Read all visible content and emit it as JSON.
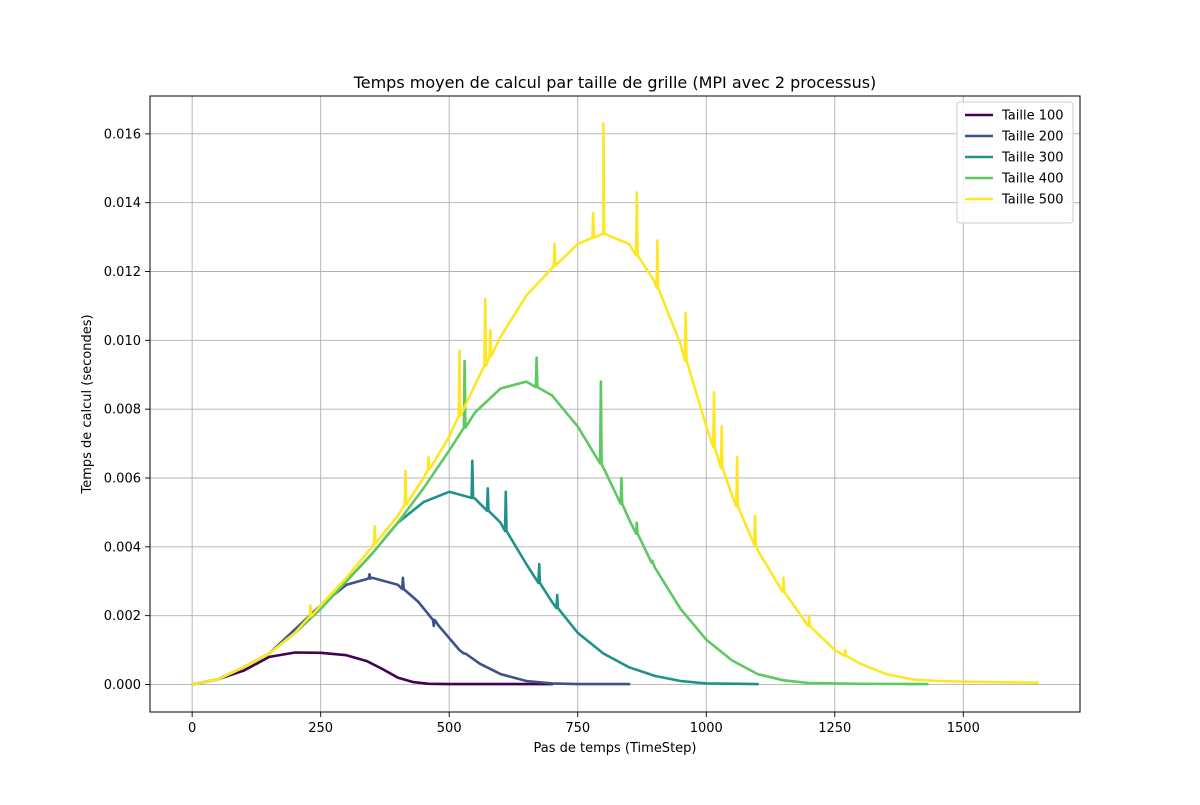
{
  "chart_data": {
    "type": "line",
    "title": "Temps moyen de calcul par taille de grille (MPI avec 2 processus)",
    "xlabel": "Pas de temps (TimeStep)",
    "ylabel": "Temps de calcul (secondes)",
    "xlim": [
      -82,
      1727
    ],
    "ylim": [
      -0.0008,
      0.0171
    ],
    "xticks": [
      0,
      250,
      500,
      750,
      1000,
      1250,
      1500
    ],
    "xtick_labels": [
      "0",
      "250",
      "500",
      "750",
      "1000",
      "1250",
      "1500"
    ],
    "yticks": [
      0.0,
      0.002,
      0.004,
      0.006,
      0.008,
      0.01,
      0.012,
      0.014,
      0.016
    ],
    "ytick_labels": [
      "0.000",
      "0.002",
      "0.004",
      "0.006",
      "0.008",
      "0.010",
      "0.012",
      "0.014",
      "0.016"
    ],
    "grid": true,
    "legend_position": "top-right",
    "series": [
      {
        "name": "Taille 100",
        "color": "#440154",
        "x": [
          0,
          50,
          100,
          150,
          200,
          250,
          300,
          340,
          370,
          400,
          430,
          460,
          500,
          600,
          700
        ],
        "y": [
          0.0,
          0.00015,
          0.0004,
          0.0008,
          0.00093,
          0.00092,
          0.00085,
          0.00068,
          0.00045,
          0.0002,
          7e-05,
          2e-05,
          1e-05,
          1e-05,
          1e-05
        ]
      },
      {
        "name": "Taille 200",
        "color": "#3b528b",
        "x": [
          0,
          50,
          100,
          150,
          200,
          250,
          300,
          350,
          400,
          440,
          480,
          520,
          560,
          600,
          650,
          700,
          750,
          850
        ],
        "y": [
          0.0,
          0.00015,
          0.0005,
          0.0009,
          0.0016,
          0.0023,
          0.0029,
          0.0031,
          0.0029,
          0.0024,
          0.0017,
          0.001,
          0.0006,
          0.0003,
          0.0001,
          3e-05,
          1e-05,
          1e-05
        ]
      },
      {
        "name": "Taille 300",
        "color": "#21918c",
        "x": [
          0,
          50,
          100,
          150,
          200,
          250,
          300,
          350,
          400,
          450,
          500,
          550,
          600,
          650,
          700,
          750,
          800,
          850,
          900,
          950,
          1000,
          1100
        ],
        "y": [
          0.0,
          0.00015,
          0.0005,
          0.0009,
          0.0015,
          0.0022,
          0.003,
          0.0038,
          0.0047,
          0.0053,
          0.0056,
          0.0054,
          0.0047,
          0.0035,
          0.0024,
          0.0015,
          0.0009,
          0.0005,
          0.00025,
          0.0001,
          3e-05,
          1e-05
        ]
      },
      {
        "name": "Taille 400",
        "color": "#5ec962",
        "x": [
          0,
          50,
          100,
          150,
          200,
          250,
          300,
          350,
          400,
          450,
          500,
          550,
          600,
          650,
          700,
          750,
          800,
          850,
          900,
          950,
          1000,
          1050,
          1100,
          1150,
          1200,
          1300,
          1430
        ],
        "y": [
          0.0,
          0.00015,
          0.0005,
          0.0009,
          0.0015,
          0.0022,
          0.003,
          0.0038,
          0.0047,
          0.0057,
          0.0068,
          0.0079,
          0.0086,
          0.0088,
          0.0084,
          0.0075,
          0.0063,
          0.0048,
          0.0034,
          0.0022,
          0.0013,
          0.0007,
          0.0003,
          0.00012,
          4e-05,
          2e-05,
          1e-05
        ]
      },
      {
        "name": "Taille 500",
        "color": "#fde725",
        "x": [
          0,
          50,
          100,
          150,
          200,
          250,
          300,
          350,
          400,
          450,
          500,
          550,
          600,
          650,
          700,
          750,
          800,
          850,
          900,
          950,
          1000,
          1050,
          1100,
          1150,
          1200,
          1250,
          1300,
          1350,
          1400,
          1450,
          1500,
          1550,
          1600,
          1645
        ],
        "y": [
          0.0,
          0.00015,
          0.0005,
          0.0009,
          0.0015,
          0.0023,
          0.0031,
          0.004,
          0.0049,
          0.006,
          0.0072,
          0.0087,
          0.0101,
          0.0113,
          0.0121,
          0.0128,
          0.0131,
          0.0128,
          0.0117,
          0.0099,
          0.0075,
          0.0055,
          0.0039,
          0.0027,
          0.0017,
          0.001,
          0.0006,
          0.0003,
          0.00015,
          0.0001,
          8e-05,
          7e-05,
          6e-05,
          5e-05
        ]
      }
    ],
    "spikes": [
      {
        "series": 4,
        "x": 800,
        "y": 0.0163
      },
      {
        "series": 4,
        "x": 865,
        "y": 0.0143
      },
      {
        "series": 4,
        "x": 780,
        "y": 0.0137
      },
      {
        "series": 4,
        "x": 705,
        "y": 0.0128
      },
      {
        "series": 4,
        "x": 570,
        "y": 0.0112
      },
      {
        "series": 4,
        "x": 580,
        "y": 0.0103
      },
      {
        "series": 4,
        "x": 520,
        "y": 0.0097
      },
      {
        "series": 4,
        "x": 905,
        "y": 0.0129
      },
      {
        "series": 4,
        "x": 960,
        "y": 0.0108
      },
      {
        "series": 4,
        "x": 1015,
        "y": 0.0085
      },
      {
        "series": 4,
        "x": 1030,
        "y": 0.0075
      },
      {
        "series": 4,
        "x": 1060,
        "y": 0.0066
      },
      {
        "series": 4,
        "x": 1095,
        "y": 0.0049
      },
      {
        "series": 4,
        "x": 1150,
        "y": 0.0031
      },
      {
        "series": 4,
        "x": 1200,
        "y": 0.002
      },
      {
        "series": 4,
        "x": 1270,
        "y": 0.001
      },
      {
        "series": 4,
        "x": 415,
        "y": 0.0062
      },
      {
        "series": 4,
        "x": 460,
        "y": 0.0066
      },
      {
        "series": 4,
        "x": 355,
        "y": 0.0046
      },
      {
        "series": 4,
        "x": 230,
        "y": 0.0023
      },
      {
        "series": 3,
        "x": 530,
        "y": 0.0094
      },
      {
        "series": 3,
        "x": 670,
        "y": 0.0095
      },
      {
        "series": 3,
        "x": 795,
        "y": 0.0088
      },
      {
        "series": 3,
        "x": 835,
        "y": 0.006
      },
      {
        "series": 3,
        "x": 865,
        "y": 0.0047
      },
      {
        "series": 3,
        "x": 895,
        "y": 0.0036
      },
      {
        "series": 2,
        "x": 545,
        "y": 0.0065
      },
      {
        "series": 2,
        "x": 575,
        "y": 0.0057
      },
      {
        "series": 2,
        "x": 610,
        "y": 0.0056
      },
      {
        "series": 2,
        "x": 675,
        "y": 0.0035
      },
      {
        "series": 2,
        "x": 710,
        "y": 0.0026
      },
      {
        "series": 1,
        "x": 345,
        "y": 0.0032
      },
      {
        "series": 1,
        "x": 410,
        "y": 0.0031
      },
      {
        "series": 1,
        "x": 470,
        "y": 0.0017
      },
      {
        "series": 1,
        "x": 530,
        "y": 0.0009
      }
    ]
  }
}
